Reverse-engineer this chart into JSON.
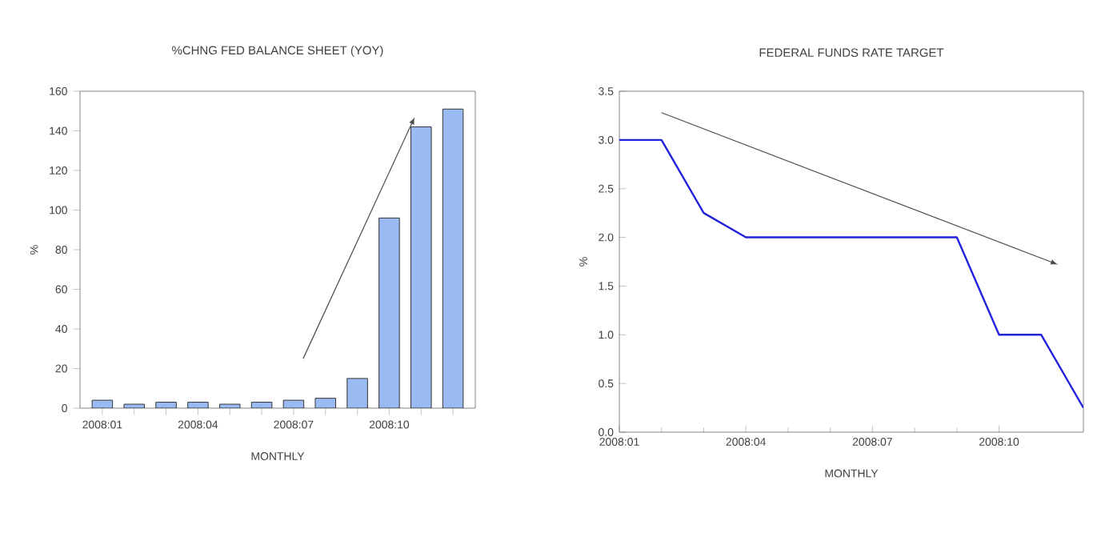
{
  "chart_data": [
    {
      "type": "bar",
      "title": "%CHNG FED BALANCE SHEET (YOY)",
      "xlabel": "MONTHLY",
      "ylabel": "%",
      "categories": [
        "2008:01",
        null,
        null,
        "2008:04",
        null,
        null,
        "2008:07",
        null,
        null,
        "2008:10",
        null,
        null
      ],
      "values": [
        4,
        2,
        3,
        3,
        2,
        3,
        4,
        5,
        15,
        96,
        142,
        151
      ],
      "color": "#99bbf2",
      "ylim": [
        0,
        160
      ],
      "yticks": [
        0,
        20,
        40,
        60,
        80,
        100,
        120,
        140,
        160
      ]
    },
    {
      "type": "line",
      "title": "FEDERAL FUNDS RATE TARGET",
      "xlabel": "MONTHLY",
      "ylabel": "%",
      "x": [
        "2008-01",
        "2008-02",
        "2008-03",
        "2008-04",
        "2008-05",
        "2008-06",
        "2008-07",
        "2008-08",
        "2008-09",
        "2008-10",
        "2008-11",
        "2008-12"
      ],
      "values": [
        3.0,
        3.0,
        2.25,
        2.0,
        2.0,
        2.0,
        2.0,
        2.0,
        2.0,
        1.0,
        1.0,
        0.25
      ],
      "color": "#2222dd",
      "xlim": [
        "2008-01",
        "2008-12"
      ],
      "xticks": [
        {
          "value": "2008-01",
          "label": "2008:01"
        },
        {
          "value": "2008-04",
          "label": "2008:04"
        },
        {
          "value": "2008-07",
          "label": "2008:07"
        },
        {
          "value": "2008-10",
          "label": "2008:10"
        }
      ],
      "ylim": [
        0,
        3.5
      ],
      "yticks": [
        {
          "value": 0,
          "label": "0.0"
        },
        0.5,
        {
          "value": 1,
          "label": "1.0"
        },
        1.5,
        {
          "value": 2,
          "label": "2.0"
        },
        2.5,
        {
          "value": 3,
          "label": "3.0"
        },
        3.5
      ],
      "marker": "none",
      "line_style": "solid"
    }
  ]
}
